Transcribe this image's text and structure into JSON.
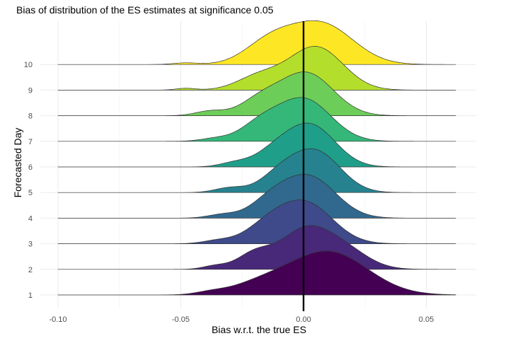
{
  "chart_data": {
    "type": "ridgeline",
    "title": "Bias of distribution of the ES estimates at significance 0.05",
    "xlabel": "Bias w.r.t. the true ES",
    "ylabel": "Forecasted Day",
    "xlim": [
      -0.1,
      0.062
    ],
    "x_ticks": [
      -0.1,
      -0.05,
      0.0,
      0.05
    ],
    "x_tick_labels": [
      "-0.10",
      "-0.05",
      "0.00",
      "0.05"
    ],
    "reference_line_x": 0.0,
    "fill_colors": [
      "#440154",
      "#482878",
      "#3E4A89",
      "#31688E",
      "#26828E",
      "#1F9E89",
      "#35B779",
      "#6DCD59",
      "#B4DE2C",
      "#FDE725"
    ],
    "series": [
      {
        "name": "1",
        "components": [
          [
            0.01,
            0.016,
            1.0
          ],
          [
            -0.018,
            0.012,
            0.22
          ],
          [
            -0.038,
            0.006,
            0.05
          ]
        ]
      },
      {
        "name": "2",
        "components": [
          [
            0.0,
            0.01,
            0.85
          ],
          [
            0.016,
            0.01,
            0.45
          ],
          [
            -0.02,
            0.007,
            0.35
          ],
          [
            -0.036,
            0.005,
            0.08
          ]
        ]
      },
      {
        "name": "3",
        "components": [
          [
            0.001,
            0.011,
            0.9
          ],
          [
            -0.015,
            0.009,
            0.35
          ],
          [
            -0.035,
            0.006,
            0.07
          ]
        ]
      },
      {
        "name": "4",
        "components": [
          [
            0.002,
            0.011,
            0.92
          ],
          [
            -0.014,
            0.008,
            0.3
          ],
          [
            -0.033,
            0.006,
            0.08
          ]
        ]
      },
      {
        "name": "5",
        "components": [
          [
            0.005,
            0.01,
            0.85
          ],
          [
            -0.01,
            0.008,
            0.32
          ],
          [
            -0.03,
            0.006,
            0.1
          ]
        ]
      },
      {
        "name": "6",
        "components": [
          [
            0.003,
            0.01,
            0.9
          ],
          [
            -0.012,
            0.008,
            0.28
          ],
          [
            -0.028,
            0.006,
            0.09
          ]
        ]
      },
      {
        "name": "7",
        "components": [
          [
            0.0,
            0.011,
            0.92
          ],
          [
            -0.018,
            0.008,
            0.32
          ],
          [
            -0.036,
            0.006,
            0.06
          ]
        ]
      },
      {
        "name": "8",
        "components": [
          [
            0.001,
            0.011,
            0.92
          ],
          [
            -0.018,
            0.008,
            0.3
          ],
          [
            -0.038,
            0.006,
            0.1
          ]
        ]
      },
      {
        "name": "9",
        "components": [
          [
            0.005,
            0.011,
            0.95
          ],
          [
            -0.018,
            0.009,
            0.3
          ],
          [
            -0.048,
            0.004,
            0.04
          ]
        ]
      },
      {
        "name": "10",
        "components": [
          [
            0.007,
            0.013,
            1.0
          ],
          [
            -0.014,
            0.01,
            0.5
          ],
          [
            -0.048,
            0.005,
            0.04
          ]
        ]
      }
    ]
  }
}
